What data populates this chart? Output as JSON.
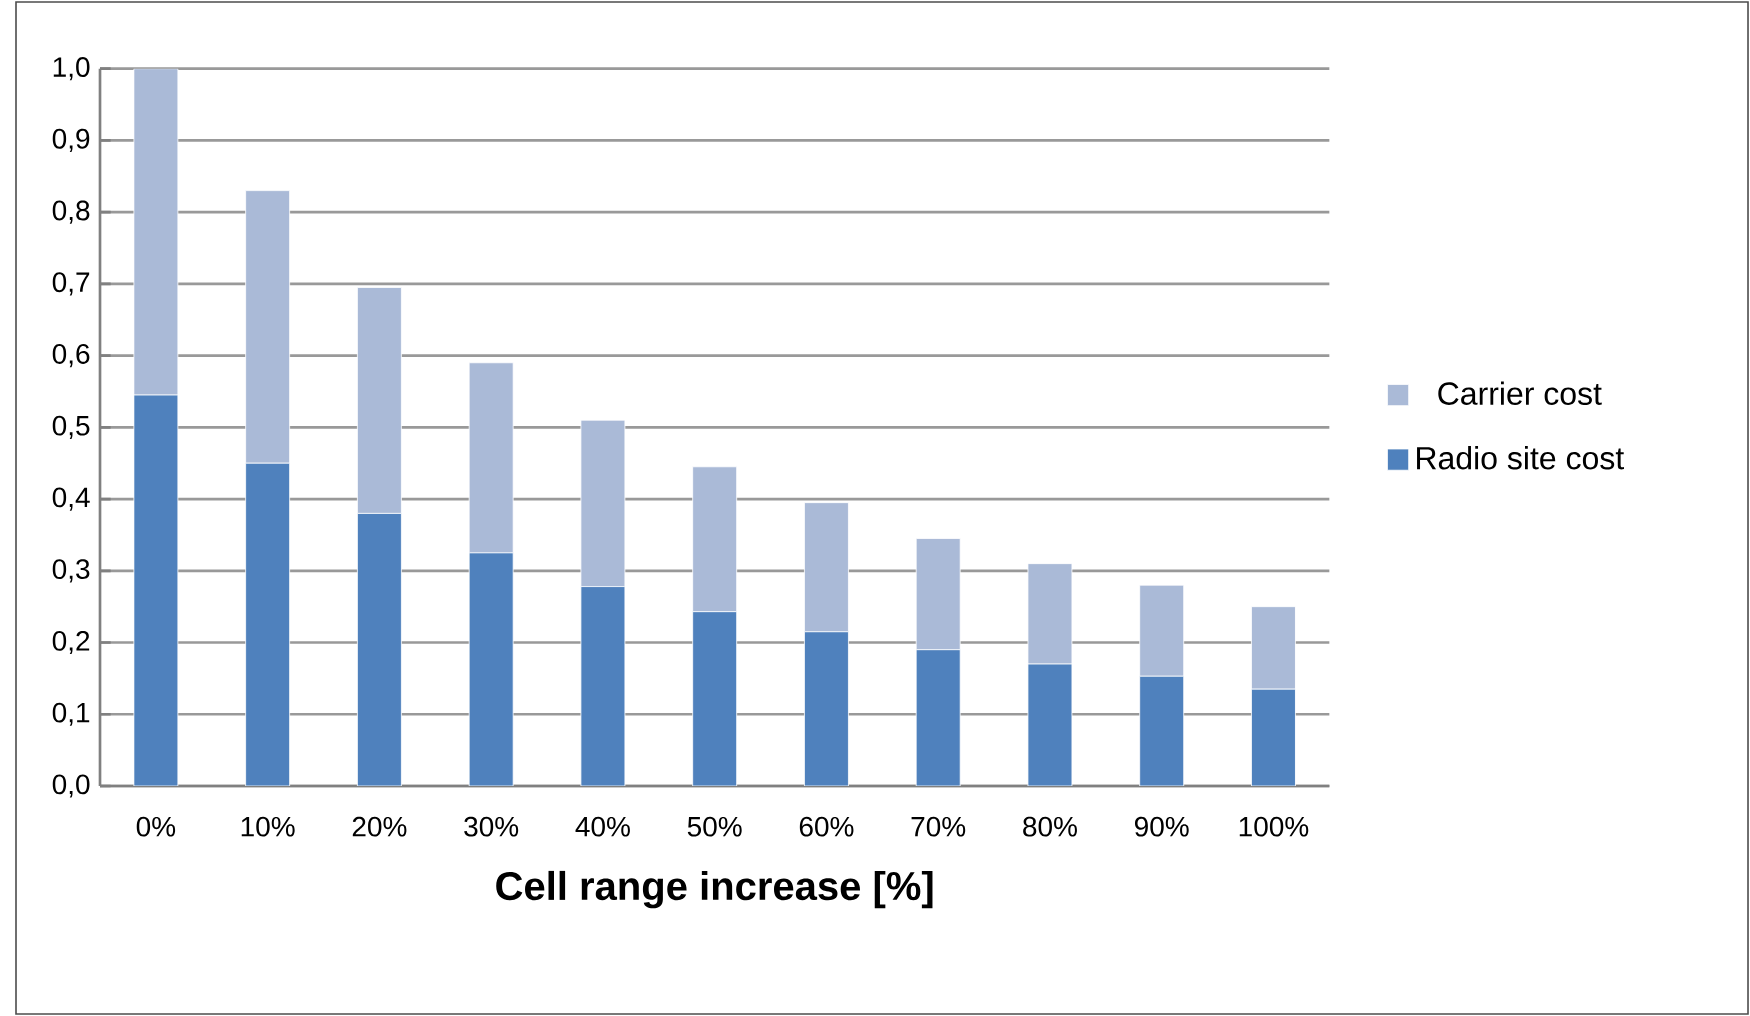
{
  "chart_data": {
    "type": "bar",
    "stacked": true,
    "xlabel": "Cell range increase [%]",
    "categories": [
      "0%",
      "10%",
      "20%",
      "30%",
      "40%",
      "50%",
      "60%",
      "70%",
      "80%",
      "90%",
      "100%"
    ],
    "series": [
      {
        "name": "Radio site cost",
        "color": "#4f81bd",
        "values": [
          0.545,
          0.45,
          0.38,
          0.325,
          0.278,
          0.243,
          0.215,
          0.19,
          0.17,
          0.153,
          0.135
        ]
      },
      {
        "name": "Carrier cost",
        "color": "#aabad7",
        "values": [
          0.455,
          0.38,
          0.315,
          0.265,
          0.232,
          0.202,
          0.18,
          0.155,
          0.14,
          0.127,
          0.115
        ]
      }
    ],
    "ylim": [
      0,
      1.0
    ],
    "yticks": [
      {
        "value": 0,
        "label": "0,0"
      },
      {
        "value": 0.1,
        "label": "0,1"
      },
      {
        "value": 0.2,
        "label": "0,2"
      },
      {
        "value": 0.3,
        "label": "0,3"
      },
      {
        "value": 0.4,
        "label": "0,4"
      },
      {
        "value": 0.5,
        "label": "0,5"
      },
      {
        "value": 0.6,
        "label": "0,6"
      },
      {
        "value": 0.7,
        "label": "0,7"
      },
      {
        "value": 0.8,
        "label": "0,8"
      },
      {
        "value": 0.9,
        "label": "0,9"
      },
      {
        "value": 1.0,
        "label": "1,0"
      }
    ],
    "grid": "y",
    "legend": "right"
  }
}
